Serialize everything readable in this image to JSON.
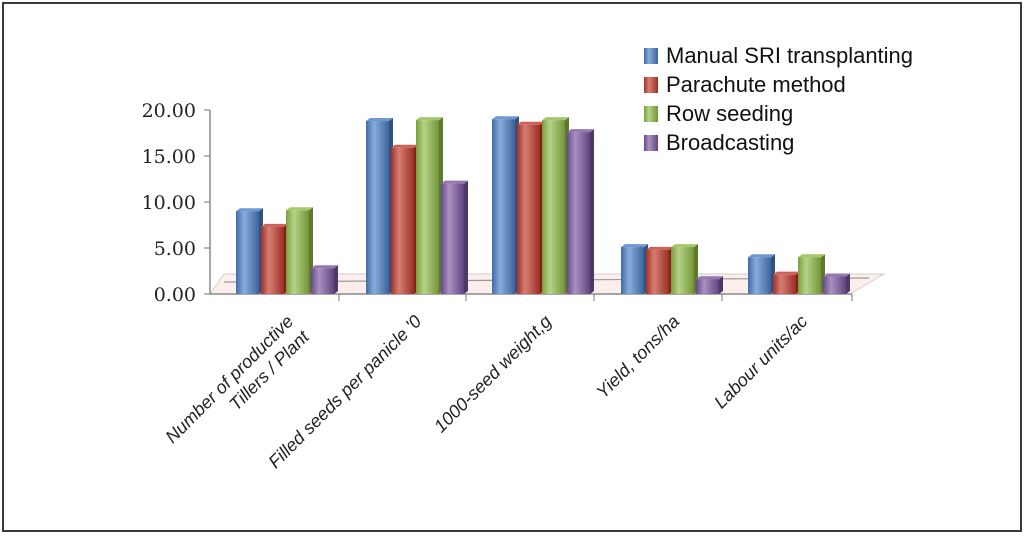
{
  "chart_data": {
    "type": "bar",
    "categories": [
      [
        "Number of productive",
        "Tillers / Plant"
      ],
      [
        "Filled seeds per panicle '0"
      ],
      [
        "1000-seed weight,g"
      ],
      [
        "Yield, tons/ha"
      ],
      [
        "Labour units/ac"
      ]
    ],
    "series": [
      {
        "name": "Manual SRI transplanting",
        "color": "#4a7ec4",
        "values": [
          9.0,
          18.8,
          19.0,
          5.1,
          4.0
        ]
      },
      {
        "name": "Parachute method",
        "color": "#c0392b",
        "values": [
          7.3,
          15.9,
          18.4,
          4.8,
          2.1
        ]
      },
      {
        "name": "Row seeding",
        "color": "#8fba46",
        "values": [
          9.1,
          18.9,
          18.9,
          5.1,
          4.0
        ]
      },
      {
        "name": "Broadcasting",
        "color": "#7a55a0",
        "values": [
          2.8,
          12.0,
          17.6,
          1.6,
          1.9
        ]
      }
    ],
    "y_ticks": [
      "0.00",
      "5.00",
      "10.00",
      "15.00",
      "20.00"
    ],
    "ylim": [
      0,
      20
    ],
    "legend_position": "top-right",
    "grid": false
  }
}
